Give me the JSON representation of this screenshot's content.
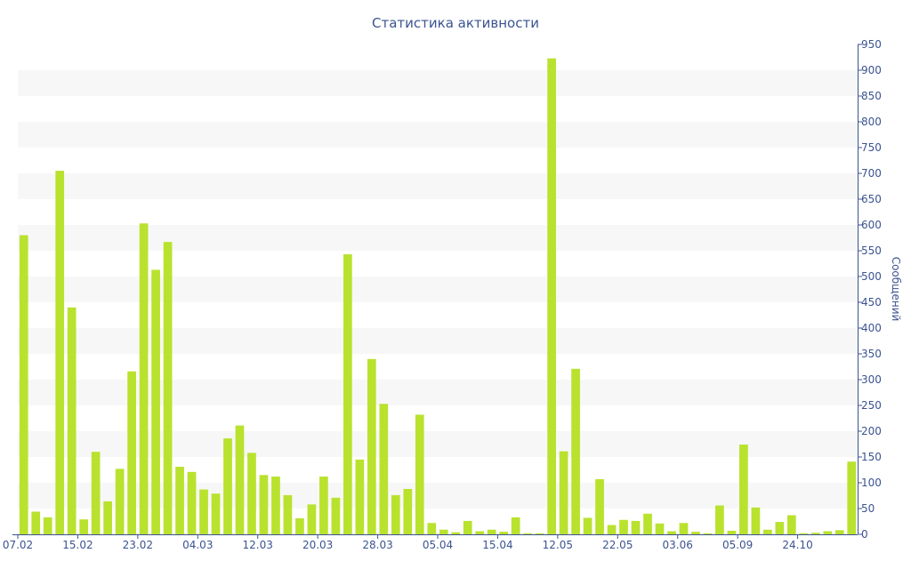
{
  "chart_data": {
    "type": "bar",
    "title": "Статистика активности",
    "ylabel": "Сообщений",
    "ylim": [
      0,
      950
    ],
    "y_ticks": [
      0,
      50,
      100,
      150,
      200,
      250,
      300,
      350,
      400,
      450,
      500,
      550,
      600,
      650,
      700,
      750,
      800,
      850,
      900,
      950
    ],
    "y_axis_position": "right",
    "grid": "alternating horizontal bands",
    "x_tick_labels": [
      "07.02",
      "15.02",
      "23.02",
      "04.03",
      "12.03",
      "20.03",
      "28.03",
      "05.04",
      "15.04",
      "12.05",
      "22.05",
      "03.06",
      "05.09",
      "24.10"
    ],
    "x_tick_indices": [
      0,
      5,
      10,
      15,
      20,
      25,
      30,
      35,
      40,
      45,
      50,
      55,
      60,
      65
    ],
    "values": [
      580,
      44,
      33,
      705,
      440,
      29,
      160,
      64,
      127,
      316,
      603,
      513,
      567,
      131,
      121,
      87,
      79,
      186,
      211,
      158,
      115,
      112,
      76,
      31,
      58,
      112,
      71,
      543,
      145,
      340,
      253,
      76,
      88,
      232,
      22,
      9,
      4,
      26,
      6,
      9,
      5,
      33,
      2,
      2,
      923,
      161,
      321,
      32,
      107,
      18,
      28,
      26,
      40,
      21,
      6,
      22,
      5,
      2,
      56,
      7,
      174,
      52,
      9,
      24,
      37,
      2,
      3,
      6,
      8,
      141
    ],
    "bar_color": "#b9e22e",
    "axis_color": "#3b5391",
    "band_color": "#f7f7f7"
  }
}
